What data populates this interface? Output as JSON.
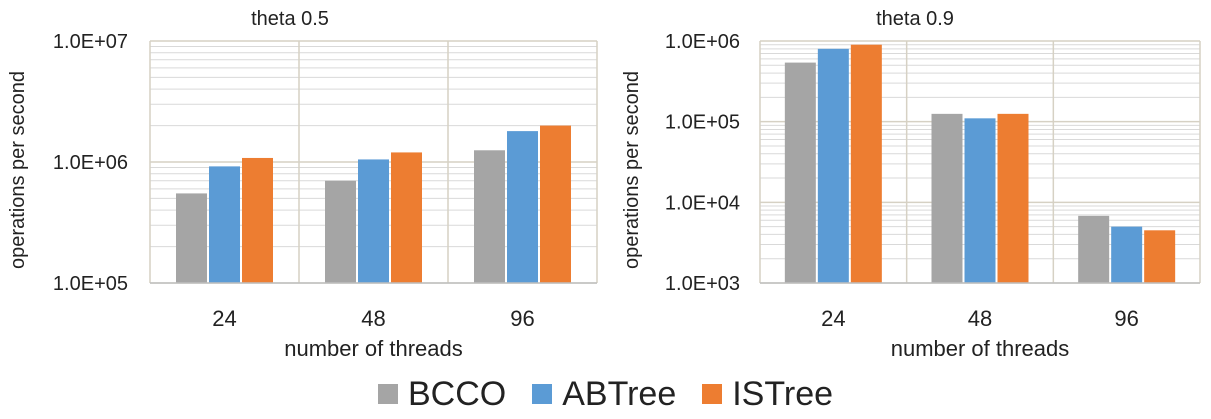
{
  "chart_data": [
    {
      "type": "bar",
      "title": "theta 0.5",
      "xlabel": "number of threads",
      "ylabel": "operations per second",
      "yscale": "log",
      "ylim": [
        100000,
        10000000
      ],
      "yticks": [
        "1.0E+05",
        "1.0E+06",
        "1.0E+07"
      ],
      "grid": true,
      "categories": [
        "24",
        "48",
        "96"
      ],
      "series": [
        {
          "name": "BCCO",
          "values": [
            550000,
            700000,
            1250000
          ]
        },
        {
          "name": "ABTree",
          "values": [
            920000,
            1050000,
            1800000
          ]
        },
        {
          "name": "ISTree",
          "values": [
            1080000,
            1200000,
            2000000
          ]
        }
      ]
    },
    {
      "type": "bar",
      "title": "theta 0.9",
      "xlabel": "number of threads",
      "ylabel": "operations per second",
      "yscale": "log",
      "ylim": [
        1000,
        1000000
      ],
      "yticks": [
        "1.0E+03",
        "1.0E+04",
        "1.0E+05",
        "1.0E+06"
      ],
      "grid": true,
      "categories": [
        "24",
        "48",
        "96"
      ],
      "series": [
        {
          "name": "BCCO",
          "values": [
            540000,
            125000,
            6800
          ]
        },
        {
          "name": "ABTree",
          "values": [
            800000,
            110000,
            5000
          ]
        },
        {
          "name": "ISTree",
          "values": [
            900000,
            125000,
            4500
          ]
        }
      ]
    }
  ],
  "legend": {
    "placement": "bottom-center",
    "items": [
      {
        "label": "BCCO",
        "color": "#a5a5a5"
      },
      {
        "label": "ABTree",
        "color": "#5b9bd5"
      },
      {
        "label": "ISTree",
        "color": "#ed7d31"
      }
    ]
  }
}
